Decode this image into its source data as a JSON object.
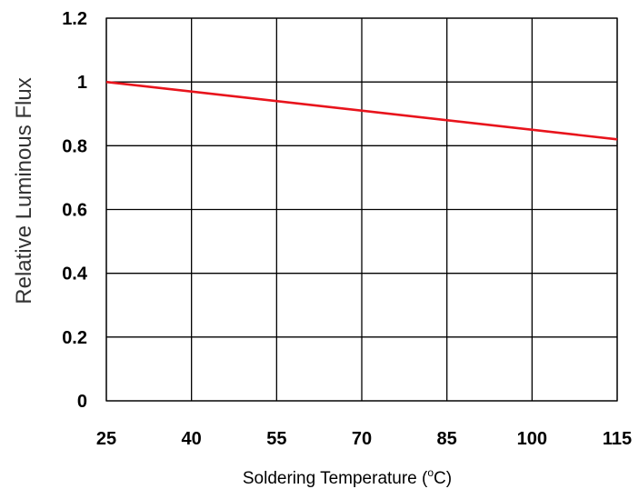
{
  "chart_data": {
    "type": "line",
    "title": "",
    "xlabel": "Soldering Temperature (",
    "xlabel_sup": "o",
    "xlabel_suffix": "C)",
    "ylabel": "Relative Luminous Flux",
    "x_ticks": [
      "25",
      "40",
      "55",
      "70",
      "85",
      "100",
      "115"
    ],
    "y_ticks": [
      "0",
      "0.2",
      "0.4",
      "0.6",
      "0.8",
      "1",
      "1.2"
    ],
    "xlim": [
      25,
      115
    ],
    "ylim": [
      0,
      1.2
    ],
    "grid": true,
    "line_color": "#e8141c",
    "series": [
      {
        "x": [
          25,
          115
        ],
        "y": [
          1.0,
          0.82
        ]
      }
    ]
  }
}
